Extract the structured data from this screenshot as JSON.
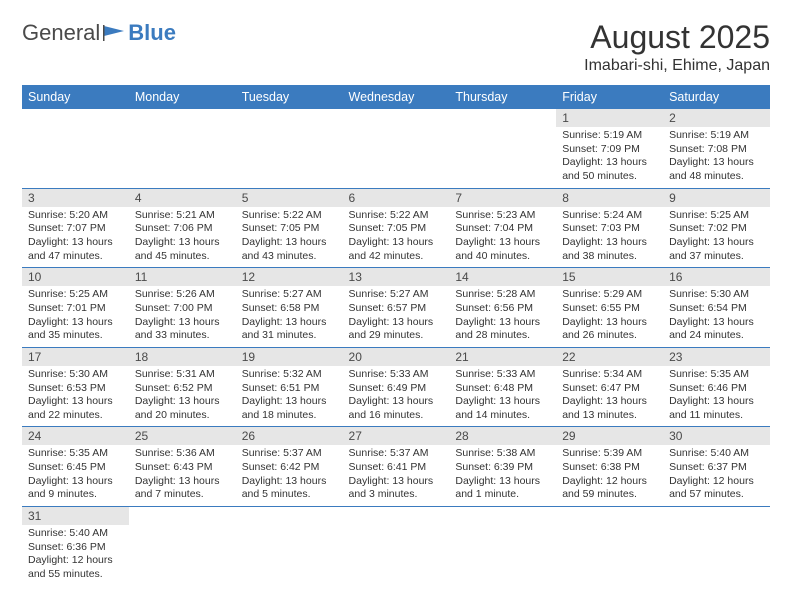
{
  "logo": {
    "text1": "General",
    "text2": "Blue"
  },
  "title": "August 2025",
  "location": "Imabari-shi, Ehime, Japan",
  "weekdays": [
    "Sunday",
    "Monday",
    "Tuesday",
    "Wednesday",
    "Thursday",
    "Friday",
    "Saturday"
  ],
  "colors": {
    "header_bg": "#3b7bbf",
    "header_text": "#ffffff",
    "daynum_bg": "#e6e6e6",
    "text": "#333333",
    "border": "#3b7bbf"
  },
  "days": {
    "1": {
      "sunrise": "5:19 AM",
      "sunset": "7:09 PM",
      "daylight": "13 hours and 50 minutes."
    },
    "2": {
      "sunrise": "5:19 AM",
      "sunset": "7:08 PM",
      "daylight": "13 hours and 48 minutes."
    },
    "3": {
      "sunrise": "5:20 AM",
      "sunset": "7:07 PM",
      "daylight": "13 hours and 47 minutes."
    },
    "4": {
      "sunrise": "5:21 AM",
      "sunset": "7:06 PM",
      "daylight": "13 hours and 45 minutes."
    },
    "5": {
      "sunrise": "5:22 AM",
      "sunset": "7:05 PM",
      "daylight": "13 hours and 43 minutes."
    },
    "6": {
      "sunrise": "5:22 AM",
      "sunset": "7:05 PM",
      "daylight": "13 hours and 42 minutes."
    },
    "7": {
      "sunrise": "5:23 AM",
      "sunset": "7:04 PM",
      "daylight": "13 hours and 40 minutes."
    },
    "8": {
      "sunrise": "5:24 AM",
      "sunset": "7:03 PM",
      "daylight": "13 hours and 38 minutes."
    },
    "9": {
      "sunrise": "5:25 AM",
      "sunset": "7:02 PM",
      "daylight": "13 hours and 37 minutes."
    },
    "10": {
      "sunrise": "5:25 AM",
      "sunset": "7:01 PM",
      "daylight": "13 hours and 35 minutes."
    },
    "11": {
      "sunrise": "5:26 AM",
      "sunset": "7:00 PM",
      "daylight": "13 hours and 33 minutes."
    },
    "12": {
      "sunrise": "5:27 AM",
      "sunset": "6:58 PM",
      "daylight": "13 hours and 31 minutes."
    },
    "13": {
      "sunrise": "5:27 AM",
      "sunset": "6:57 PM",
      "daylight": "13 hours and 29 minutes."
    },
    "14": {
      "sunrise": "5:28 AM",
      "sunset": "6:56 PM",
      "daylight": "13 hours and 28 minutes."
    },
    "15": {
      "sunrise": "5:29 AM",
      "sunset": "6:55 PM",
      "daylight": "13 hours and 26 minutes."
    },
    "16": {
      "sunrise": "5:30 AM",
      "sunset": "6:54 PM",
      "daylight": "13 hours and 24 minutes."
    },
    "17": {
      "sunrise": "5:30 AM",
      "sunset": "6:53 PM",
      "daylight": "13 hours and 22 minutes."
    },
    "18": {
      "sunrise": "5:31 AM",
      "sunset": "6:52 PM",
      "daylight": "13 hours and 20 minutes."
    },
    "19": {
      "sunrise": "5:32 AM",
      "sunset": "6:51 PM",
      "daylight": "13 hours and 18 minutes."
    },
    "20": {
      "sunrise": "5:33 AM",
      "sunset": "6:49 PM",
      "daylight": "13 hours and 16 minutes."
    },
    "21": {
      "sunrise": "5:33 AM",
      "sunset": "6:48 PM",
      "daylight": "13 hours and 14 minutes."
    },
    "22": {
      "sunrise": "5:34 AM",
      "sunset": "6:47 PM",
      "daylight": "13 hours and 13 minutes."
    },
    "23": {
      "sunrise": "5:35 AM",
      "sunset": "6:46 PM",
      "daylight": "13 hours and 11 minutes."
    },
    "24": {
      "sunrise": "5:35 AM",
      "sunset": "6:45 PM",
      "daylight": "13 hours and 9 minutes."
    },
    "25": {
      "sunrise": "5:36 AM",
      "sunset": "6:43 PM",
      "daylight": "13 hours and 7 minutes."
    },
    "26": {
      "sunrise": "5:37 AM",
      "sunset": "6:42 PM",
      "daylight": "13 hours and 5 minutes."
    },
    "27": {
      "sunrise": "5:37 AM",
      "sunset": "6:41 PM",
      "daylight": "13 hours and 3 minutes."
    },
    "28": {
      "sunrise": "5:38 AM",
      "sunset": "6:39 PM",
      "daylight": "13 hours and 1 minute."
    },
    "29": {
      "sunrise": "5:39 AM",
      "sunset": "6:38 PM",
      "daylight": "12 hours and 59 minutes."
    },
    "30": {
      "sunrise": "5:40 AM",
      "sunset": "6:37 PM",
      "daylight": "12 hours and 57 minutes."
    },
    "31": {
      "sunrise": "5:40 AM",
      "sunset": "6:36 PM",
      "daylight": "12 hours and 55 minutes."
    }
  },
  "layout": {
    "first_weekday_index": 5,
    "num_days": 31,
    "labels": {
      "sunrise": "Sunrise:",
      "sunset": "Sunset:",
      "daylight": "Daylight:"
    }
  }
}
